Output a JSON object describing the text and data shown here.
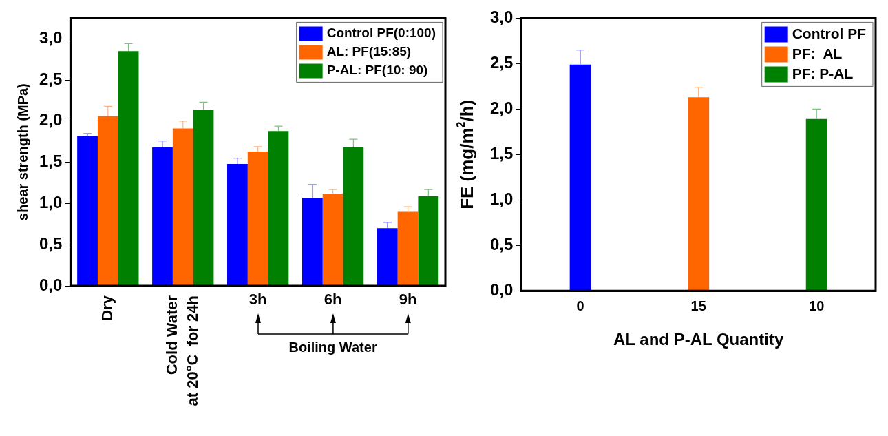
{
  "chart_data": [
    {
      "type": "bar",
      "ylabel": "shear strength (MPa)",
      "categories": [
        "Dry",
        "Cold Water\nat 20°C  for 24h",
        "3h",
        "6h",
        "9h"
      ],
      "series": [
        {
          "name": "Control PF(0:100)",
          "color": "#0000ff",
          "values": [
            1.82,
            1.68,
            1.48,
            1.07,
            0.7
          ],
          "errors": [
            [
              1.82,
              1.85
            ],
            [
              1.68,
              1.76
            ],
            [
              1.48,
              1.55
            ],
            [
              1.07,
              1.23
            ],
            [
              0.7,
              0.77
            ]
          ]
        },
        {
          "name": "AL: PF(15:85)",
          "color": "#ff6600",
          "values": [
            2.06,
            1.91,
            1.63,
            1.12,
            0.9
          ],
          "errors": [
            [
              2.06,
              2.18
            ],
            [
              1.91,
              2.0
            ],
            [
              1.63,
              1.69
            ],
            [
              1.12,
              1.17
            ],
            [
              0.9,
              0.96
            ]
          ]
        },
        {
          "name": "P-AL: PF(10: 90)",
          "color": "#008000",
          "values": [
            2.85,
            2.14,
            1.88,
            1.68,
            1.09
          ],
          "errors": [
            [
              2.85,
              2.94
            ],
            [
              2.14,
              2.23
            ],
            [
              1.88,
              1.94
            ],
            [
              1.68,
              1.78
            ],
            [
              1.09,
              1.17
            ]
          ]
        }
      ],
      "ylim": [
        0,
        3.25
      ],
      "yticks": [
        {
          "value": 0,
          "label": "0,0"
        },
        {
          "value": 0.5,
          "label": "0,5"
        },
        {
          "value": 1,
          "label": "1,0"
        },
        {
          "value": 1.5,
          "label": "1,5"
        },
        {
          "value": 2,
          "label": "2,0"
        },
        {
          "value": 2.5,
          "label": "2,5"
        },
        {
          "value": 3,
          "label": "3,0"
        }
      ],
      "annotations": [
        "Boiling Water"
      ],
      "legend": "top right",
      "grid": false
    },
    {
      "type": "bar",
      "ylabel": "FE (mg/m$^{2}$/h)",
      "xlabel": "AL and P-AL Quantity",
      "categories": [
        "0",
        "15",
        "10"
      ],
      "series": [
        {
          "name": "Control PF",
          "color": "#0000ff",
          "values": [
            2.49,
            null,
            null
          ],
          "errors": [
            [
              2.49,
              2.65
            ],
            null,
            null
          ]
        },
        {
          "name": "PF:  AL",
          "color": "#ff6600",
          "values": [
            null,
            2.13,
            null
          ],
          "errors": [
            null,
            [
              2.13,
              2.24
            ],
            null
          ]
        },
        {
          "name": "PF: P-AL",
          "color": "#008000",
          "values": [
            null,
            null,
            1.89
          ],
          "errors": [
            null,
            null,
            [
              1.89,
              2.0
            ]
          ]
        }
      ],
      "ylim": [
        0,
        3
      ],
      "yticks": [
        {
          "value": 0,
          "label": "0,0"
        },
        {
          "value": 0.5,
          "label": "0,5"
        },
        {
          "value": 1,
          "label": "1,0"
        },
        {
          "value": 1.5,
          "label": "1,5"
        },
        {
          "value": 2,
          "label": "2,0"
        },
        {
          "value": 2.5,
          "label": "2,5"
        },
        {
          "value": 3,
          "label": "3,0"
        }
      ],
      "legend": "top right",
      "grid": false
    }
  ]
}
